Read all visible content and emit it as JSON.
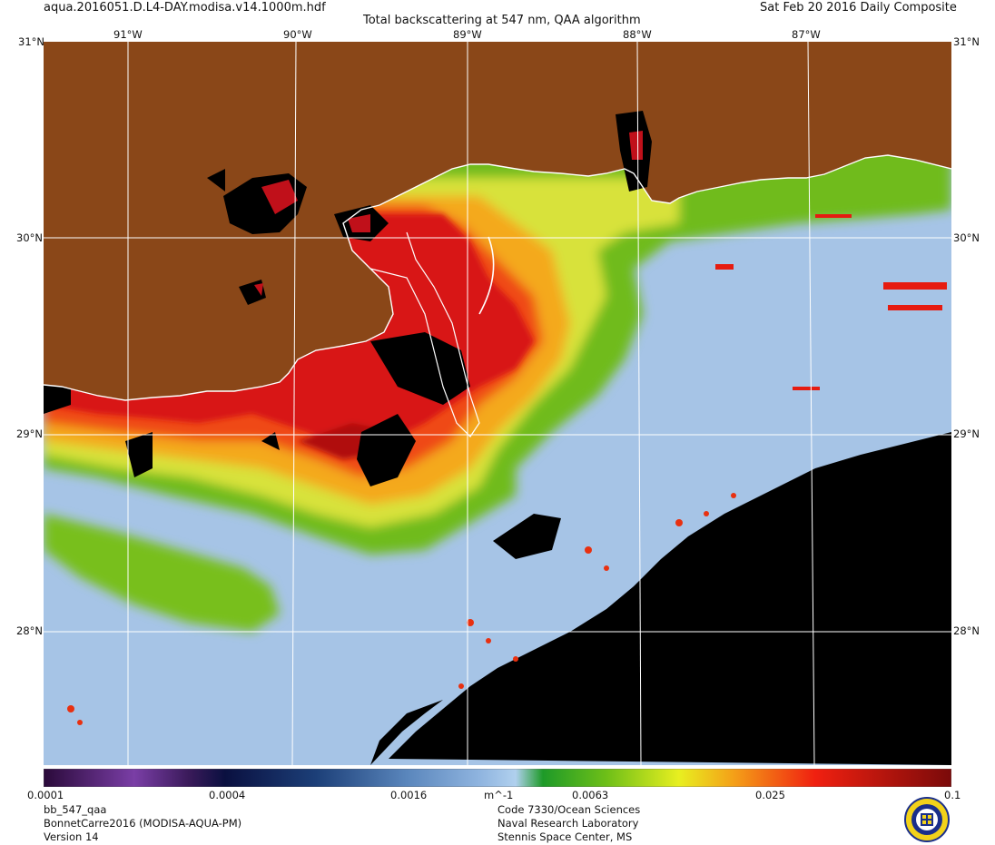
{
  "header": {
    "filename": "aqua.2016051.D.L4-DAY.modisa.v14.1000m.hdf",
    "title": "Total backscattering at 547 nm, QAA algorithm",
    "date": "Sat Feb 20 2016 Daily Composite"
  },
  "map": {
    "lon_labels": [
      "91°W",
      "90°W",
      "89°W",
      "88°W",
      "87°W"
    ],
    "lat_labels": [
      "30°N",
      "29°N",
      "28°N"
    ],
    "corner_top_left": "31°N",
    "corner_top_right": "31°N",
    "extent": {
      "lon": [
        -91.5,
        -86.8
      ],
      "lat": [
        27.3,
        31.0
      ]
    },
    "colors": {
      "land": "#8a4718",
      "no_data": "#000000",
      "coastline": "#ffffff",
      "graticule": "#ffffff",
      "clear_water": "#a6c4e6"
    }
  },
  "colorbar": {
    "ticks": [
      "0.0001",
      "0.0004",
      "0.0016",
      "0.0063",
      "0.025",
      "0.1"
    ],
    "unit": "m^-1",
    "scale": "log"
  },
  "footer": {
    "left": [
      "bb_547_qaa",
      "BonnetCarre2016 (MODISA-AQUA-PM)",
      "Version 14"
    ],
    "right": [
      "Code 7330/Ocean Sciences",
      "Naval Research Laboratory",
      "Stennis Space Center, MS"
    ]
  }
}
